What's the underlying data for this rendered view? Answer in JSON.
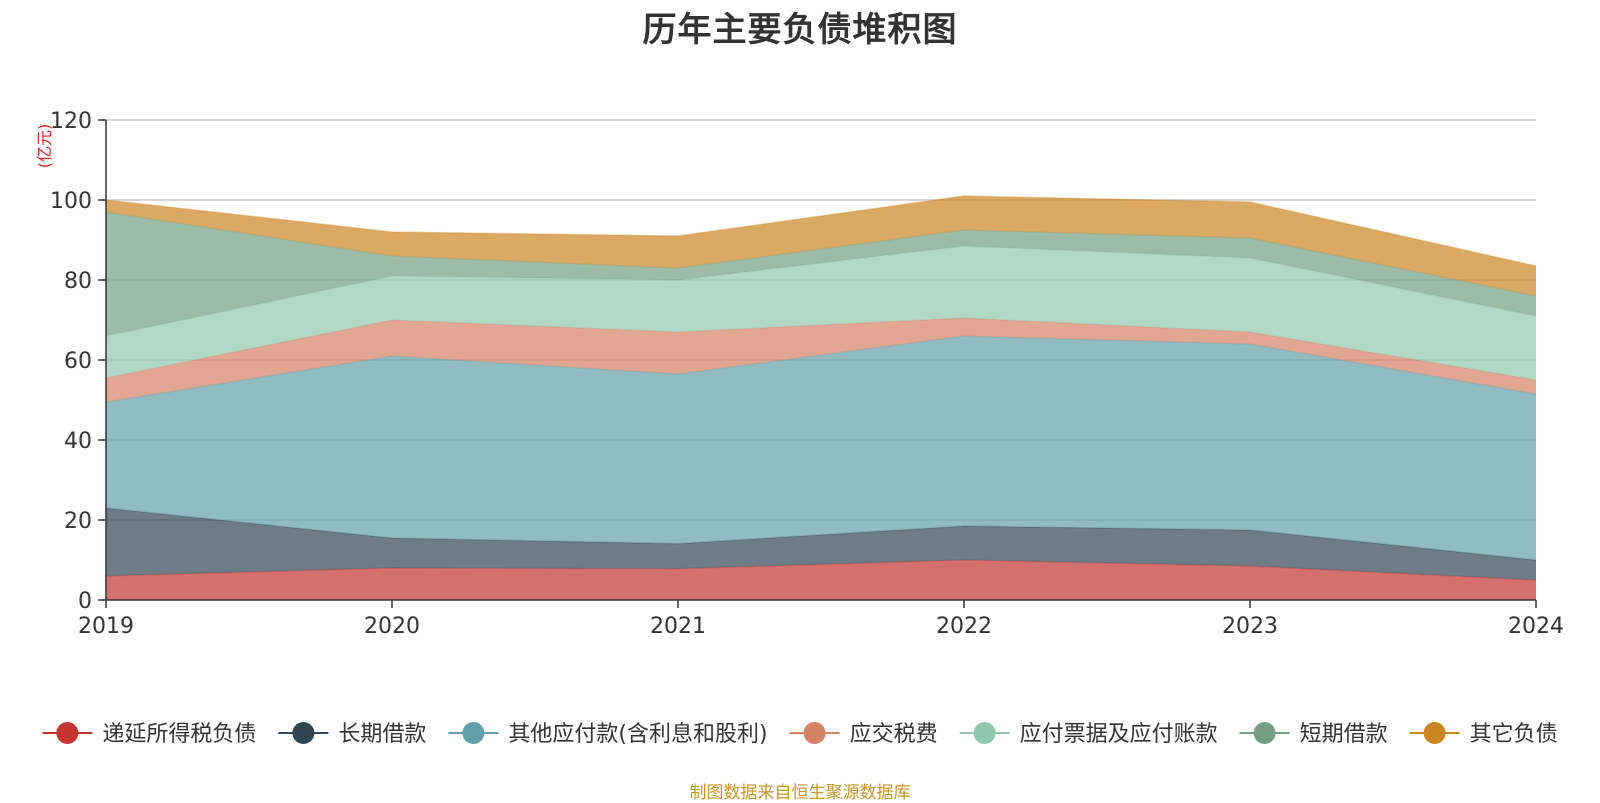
{
  "title": "历年主要负债堆积图",
  "source": "制图数据来自恒生聚源数据库",
  "chart_data": {
    "type": "area",
    "stacked": true,
    "title": "历年主要负债堆积图",
    "y_unit": "(亿元)",
    "xlabel": "",
    "ylabel": "",
    "categories": [
      "2019",
      "2020",
      "2021",
      "2022",
      "2023",
      "2024"
    ],
    "ylim": [
      0,
      120
    ],
    "yticks": [
      0,
      20,
      40,
      60,
      80,
      100,
      120
    ],
    "grid": true,
    "legend_position": "bottom",
    "series": [
      {
        "name": "递延所得税负债",
        "color": "#c23531",
        "values": [
          6,
          8,
          7.8,
          10,
          8.5,
          5
        ]
      },
      {
        "name": "长期借款",
        "color": "#2f4554",
        "values": [
          17,
          7.5,
          6.3,
          8.5,
          9,
          5
        ]
      },
      {
        "name": "其他应付款(含利息和股利)",
        "color": "#61a0a8",
        "values": [
          26.5,
          45.5,
          42.4,
          47.5,
          46.5,
          41.5
        ]
      },
      {
        "name": "应交税费",
        "color": "#d48265",
        "values": [
          6,
          9,
          10.5,
          4.5,
          3,
          3.5
        ]
      },
      {
        "name": "应付票据及应付账款",
        "color": "#91c7ae",
        "values": [
          10.5,
          11,
          13,
          18,
          18.5,
          16
        ]
      },
      {
        "name": "短期借款",
        "color": "#749f83",
        "values": [
          31,
          5,
          3,
          4,
          5,
          5
        ]
      },
      {
        "name": "其它负债",
        "color": "#ca8622",
        "values": [
          3,
          6,
          8,
          8.5,
          9,
          7.5
        ]
      }
    ]
  }
}
